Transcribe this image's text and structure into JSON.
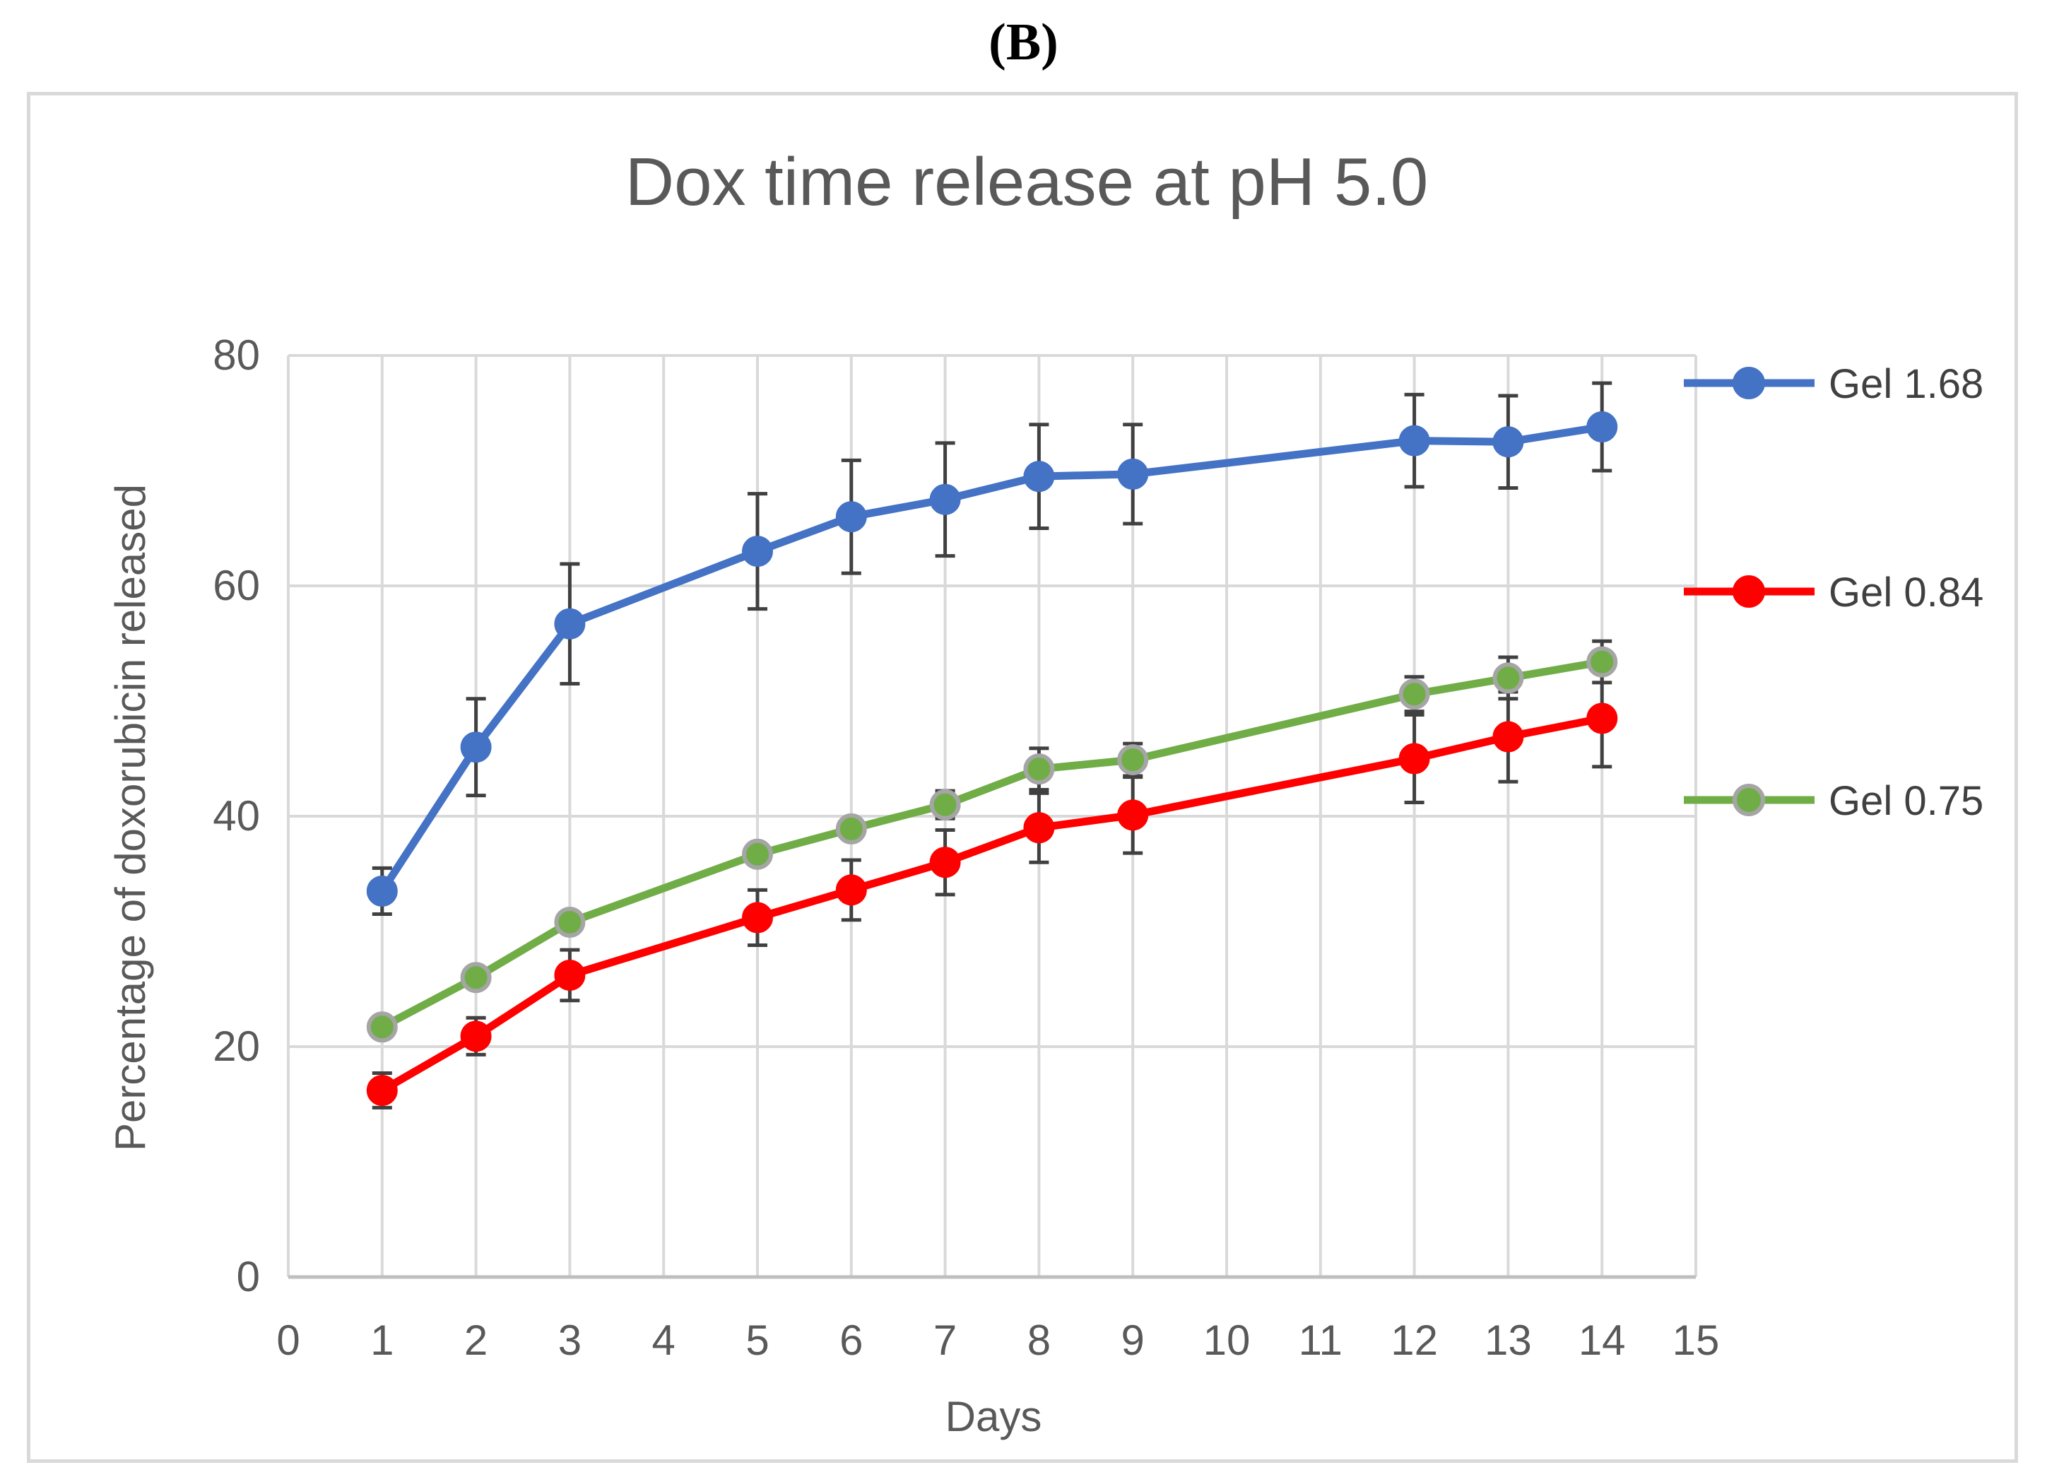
{
  "panel_label": "(B)",
  "chart_data": {
    "type": "line",
    "title": "Dox time release at pH 5.0",
    "xlabel": "Days",
    "ylabel": "Percentage of doxorubicin released",
    "xlim": [
      0,
      15
    ],
    "ylim": [
      0,
      80
    ],
    "x_ticks": [
      0,
      1,
      2,
      3,
      4,
      5,
      6,
      7,
      8,
      9,
      10,
      11,
      12,
      13,
      14,
      15
    ],
    "y_ticks": [
      0,
      20,
      40,
      60,
      80
    ],
    "grid": true,
    "legend_position": "right",
    "x": [
      1,
      2,
      3,
      5,
      6,
      7,
      8,
      9,
      12,
      13,
      14
    ],
    "series": [
      {
        "name": "Gel 1.68",
        "color": "#4472c4",
        "marker_edge": "#4472c4",
        "values": [
          33.5,
          46,
          56.7,
          63,
          66,
          67.5,
          69.5,
          69.7,
          72.6,
          72.5,
          73.8
        ],
        "errors": [
          2,
          4.2,
          5.2,
          5,
          4.9,
          4.9,
          4.5,
          4.3,
          4,
          4,
          3.8
        ]
      },
      {
        "name": "Gel 0.84",
        "color": "#ff0000",
        "marker_edge": "#ff0000",
        "values": [
          16.2,
          20.9,
          26.2,
          31.2,
          33.6,
          36,
          39,
          40.1,
          45,
          46.9,
          48.5
        ],
        "errors": [
          1.5,
          1.6,
          2.2,
          2.4,
          2.6,
          2.8,
          3,
          3.3,
          3.8,
          3.9,
          4.2
        ]
      },
      {
        "name": "Gel 0.75",
        "color": "#70ad47",
        "marker_edge": "#a5a5a5",
        "values": [
          21.7,
          26,
          30.8,
          36.7,
          38.9,
          41,
          44.1,
          44.9,
          50.6,
          52,
          53.4
        ],
        "errors": [
          0,
          0,
          0,
          0,
          0,
          1.2,
          1.8,
          1.4,
          1.5,
          1.8,
          1.8
        ]
      }
    ]
  }
}
